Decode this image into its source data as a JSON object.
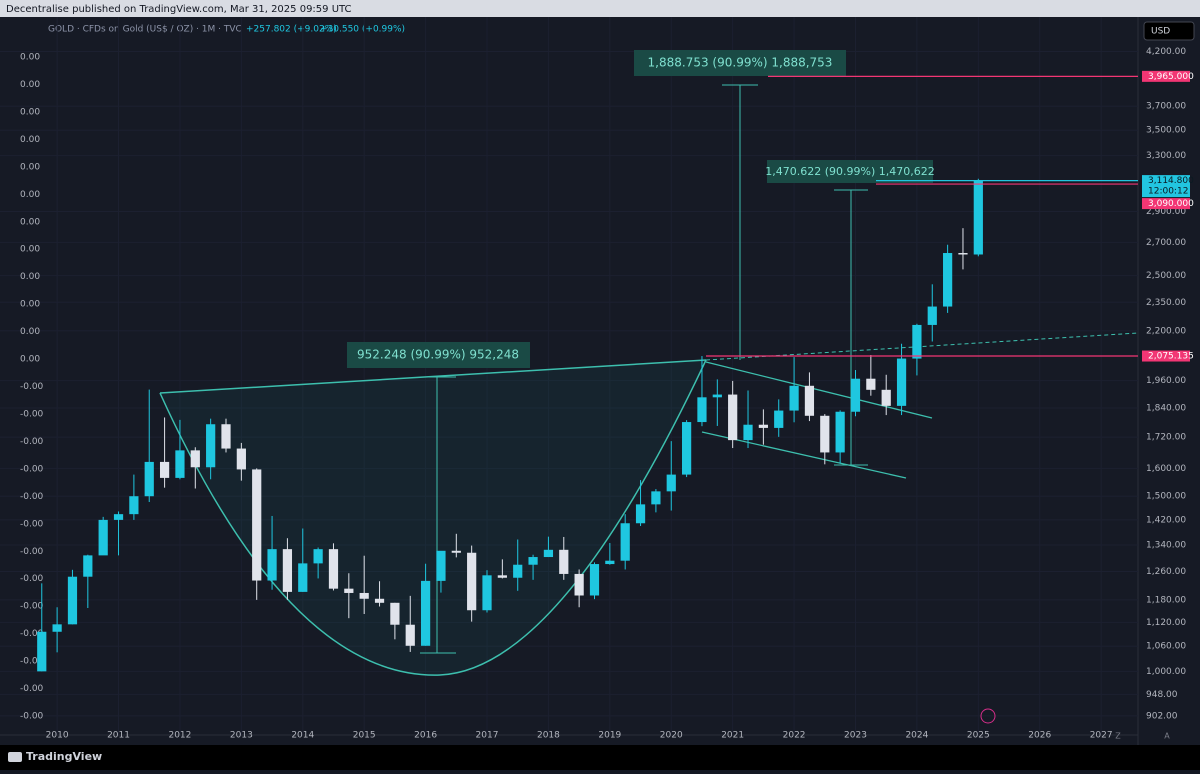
{
  "header": {
    "published": "Decentralise published on TradingView.com, Mar 31, 2025 09:59 UTC",
    "legend": "GOLD · CFDs on Gold (US$ / OZ) · 1M · TVC",
    "change_1": "+257.802 (+9.02%)",
    "change_2": "+30.550 (+0.99%)",
    "currency": "USD"
  },
  "chart_data": {
    "type": "candlestick",
    "log_scale": true,
    "up_color": "#1fc7e0",
    "down_color": "#e0e3eb",
    "xlim": [
      2009.07,
      2027.6
    ],
    "ylim": [
      863,
      4549
    ],
    "xticks": [
      2010,
      2011,
      2012,
      2013,
      2014,
      2015,
      2016,
      2017,
      2018,
      2019,
      2020,
      2021,
      2022,
      2023,
      2024,
      2025,
      2026,
      2027
    ],
    "yticks": [
      {
        "value": 4200,
        "label": "4,200.00"
      },
      {
        "value": 3700,
        "label": "3,700.00"
      },
      {
        "value": 3500,
        "label": "3,500.00"
      },
      {
        "value": 3300,
        "label": "3,300.00"
      },
      {
        "value": 2900,
        "label": "2,900.00"
      },
      {
        "value": 2700,
        "label": "2,700.00"
      },
      {
        "value": 2500,
        "label": "2,500.00"
      },
      {
        "value": 2350,
        "label": "2,350.00"
      },
      {
        "value": 2200,
        "label": "2,200.00"
      },
      {
        "value": 1960,
        "label": "1,960.00"
      },
      {
        "value": 1840,
        "label": "1,840.00"
      },
      {
        "value": 1720,
        "label": "1,720.00"
      },
      {
        "value": 1600,
        "label": "1,600.00"
      },
      {
        "value": 1500,
        "label": "1,500.00"
      },
      {
        "value": 1420,
        "label": "1,420.00"
      },
      {
        "value": 1340,
        "label": "1,340.00"
      },
      {
        "value": 1260,
        "label": "1,260.00"
      },
      {
        "value": 1180,
        "label": "1,180.00"
      },
      {
        "value": 1120,
        "label": "1,120.00"
      },
      {
        "value": 1060,
        "label": "1,060.00"
      },
      {
        "value": 1000,
        "label": "1,000.00"
      },
      {
        "value": 948,
        "label": "948.00"
      },
      {
        "value": 902,
        "label": "902.00"
      }
    ],
    "left_labels": [
      "0.00",
      "0.00",
      "0.00",
      "0.00",
      "0.00",
      "0.00",
      "0.00",
      "0.00",
      "0.00",
      "0.00",
      "0.00",
      "0.00",
      "-0.00",
      "-0.00",
      "-0.00",
      "-0.00",
      "-0.00",
      "-0.00",
      "-0.00",
      "-0.00",
      "-0.00",
      "-0.00",
      "-0.00",
      "-0.00",
      "-0.00"
    ],
    "x": [
      2009.75,
      2010,
      2010.25,
      2010.5,
      2010.75,
      2011,
      2011.25,
      2011.5,
      2011.75,
      2012,
      2012.25,
      2012.5,
      2012.75,
      2013,
      2013.25,
      2013.5,
      2013.75,
      2014,
      2014.25,
      2014.5,
      2014.75,
      2015,
      2015.25,
      2015.5,
      2015.75,
      2016,
      2016.25,
      2016.5,
      2016.75,
      2017,
      2017.25,
      2017.5,
      2017.75,
      2018,
      2018.25,
      2018.5,
      2018.75,
      2019,
      2019.25,
      2019.5,
      2019.75,
      2020,
      2020.25,
      2020.5,
      2020.75,
      2021,
      2021.25,
      2021.5,
      2021.75,
      2022,
      2022.25,
      2022.5,
      2022.75,
      2023,
      2023.25,
      2023.5,
      2023.75,
      2024,
      2024.25,
      2024.5,
      2024.75,
      2025
    ],
    "open": [
      1000,
      1096,
      1115,
      1245,
      1308,
      1420,
      1439,
      1500,
      1624,
      1565,
      1668,
      1604,
      1772,
      1675,
      1596,
      1234,
      1327,
      1202,
      1284,
      1327,
      1211,
      1199,
      1183,
      1172,
      1114,
      1061,
      1233,
      1322,
      1316,
      1152,
      1249,
      1242,
      1280,
      1303,
      1325,
      1253,
      1192,
      1282,
      1292,
      1409,
      1472,
      1517,
      1577,
      1781,
      1886,
      1898,
      1708,
      1770,
      1757,
      1829,
      1937,
      1807,
      1660,
      1824,
      1969,
      1919,
      1849,
      2063,
      2230,
      2327,
      2634,
      2625
    ],
    "high": [
      1226,
      1160,
      1265,
      1310,
      1430,
      1448,
      1577,
      1920,
      1800,
      1790,
      1680,
      1795,
      1795,
      1697,
      1600,
      1433,
      1361,
      1392,
      1332,
      1345,
      1255,
      1307,
      1232,
      1172,
      1191,
      1283,
      1315,
      1375,
      1338,
      1264,
      1296,
      1357,
      1310,
      1366,
      1365,
      1266,
      1287,
      1346,
      1439,
      1557,
      1525,
      1704,
      1789,
      2075,
      1966,
      1959,
      1916,
      1834,
      1877,
      2070,
      1998,
      1814,
      1830,
      2009,
      2080,
      1987,
      2135,
      2236,
      2450,
      2685,
      2790,
      3128
    ],
    "low": [
      1000,
      1045,
      1115,
      1158,
      1310,
      1308,
      1420,
      1480,
      1530,
      1560,
      1527,
      1560,
      1660,
      1555,
      1180,
      1208,
      1180,
      1202,
      1240,
      1206,
      1131,
      1142,
      1162,
      1077,
      1046,
      1061,
      1200,
      1302,
      1122,
      1146,
      1240,
      1205,
      1236,
      1303,
      1236,
      1160,
      1182,
      1280,
      1266,
      1400,
      1445,
      1451,
      1568,
      1764,
      1765,
      1677,
      1677,
      1690,
      1721,
      1780,
      1785,
      1615,
      1618,
      1805,
      1893,
      1810,
      1810,
      1984,
      2146,
      2293,
      2536,
      2614
    ],
    "close": [
      1096,
      1115,
      1245,
      1308,
      1420,
      1439,
      1500,
      1624,
      1565,
      1668,
      1604,
      1772,
      1675,
      1596,
      1234,
      1327,
      1202,
      1284,
      1327,
      1211,
      1199,
      1183,
      1172,
      1114,
      1061,
      1233,
      1322,
      1316,
      1152,
      1249,
      1242,
      1280,
      1303,
      1325,
      1253,
      1192,
      1282,
      1292,
      1409,
      1472,
      1517,
      1577,
      1781,
      1886,
      1898,
      1708,
      1770,
      1757,
      1829,
      1937,
      1807,
      1660,
      1824,
      1969,
      1919,
      1849,
      2063,
      2230,
      2327,
      2634,
      2625,
      3114.8
    ],
    "price_labels": [
      {
        "value": 3965,
        "label": "3,965.000",
        "color": "#f23674"
      },
      {
        "value": 3114.8,
        "label": "3,114.800",
        "color": "#22c5e0",
        "countdown": "12:00:12"
      },
      {
        "value": 3090,
        "label": "3,090.000",
        "color": "#f23674"
      },
      {
        "value": 2075.135,
        "label": "2,075.135",
        "color": "#f23674"
      }
    ],
    "measurements": [
      "952.248 (90.99%) 952,248",
      "1,888.753 (90.99%) 1,888,753",
      "1,470.622 (90.99%) 1,470,622"
    ]
  },
  "footer": {
    "brand": "TradingView",
    "z": "Z",
    "a": "A"
  }
}
